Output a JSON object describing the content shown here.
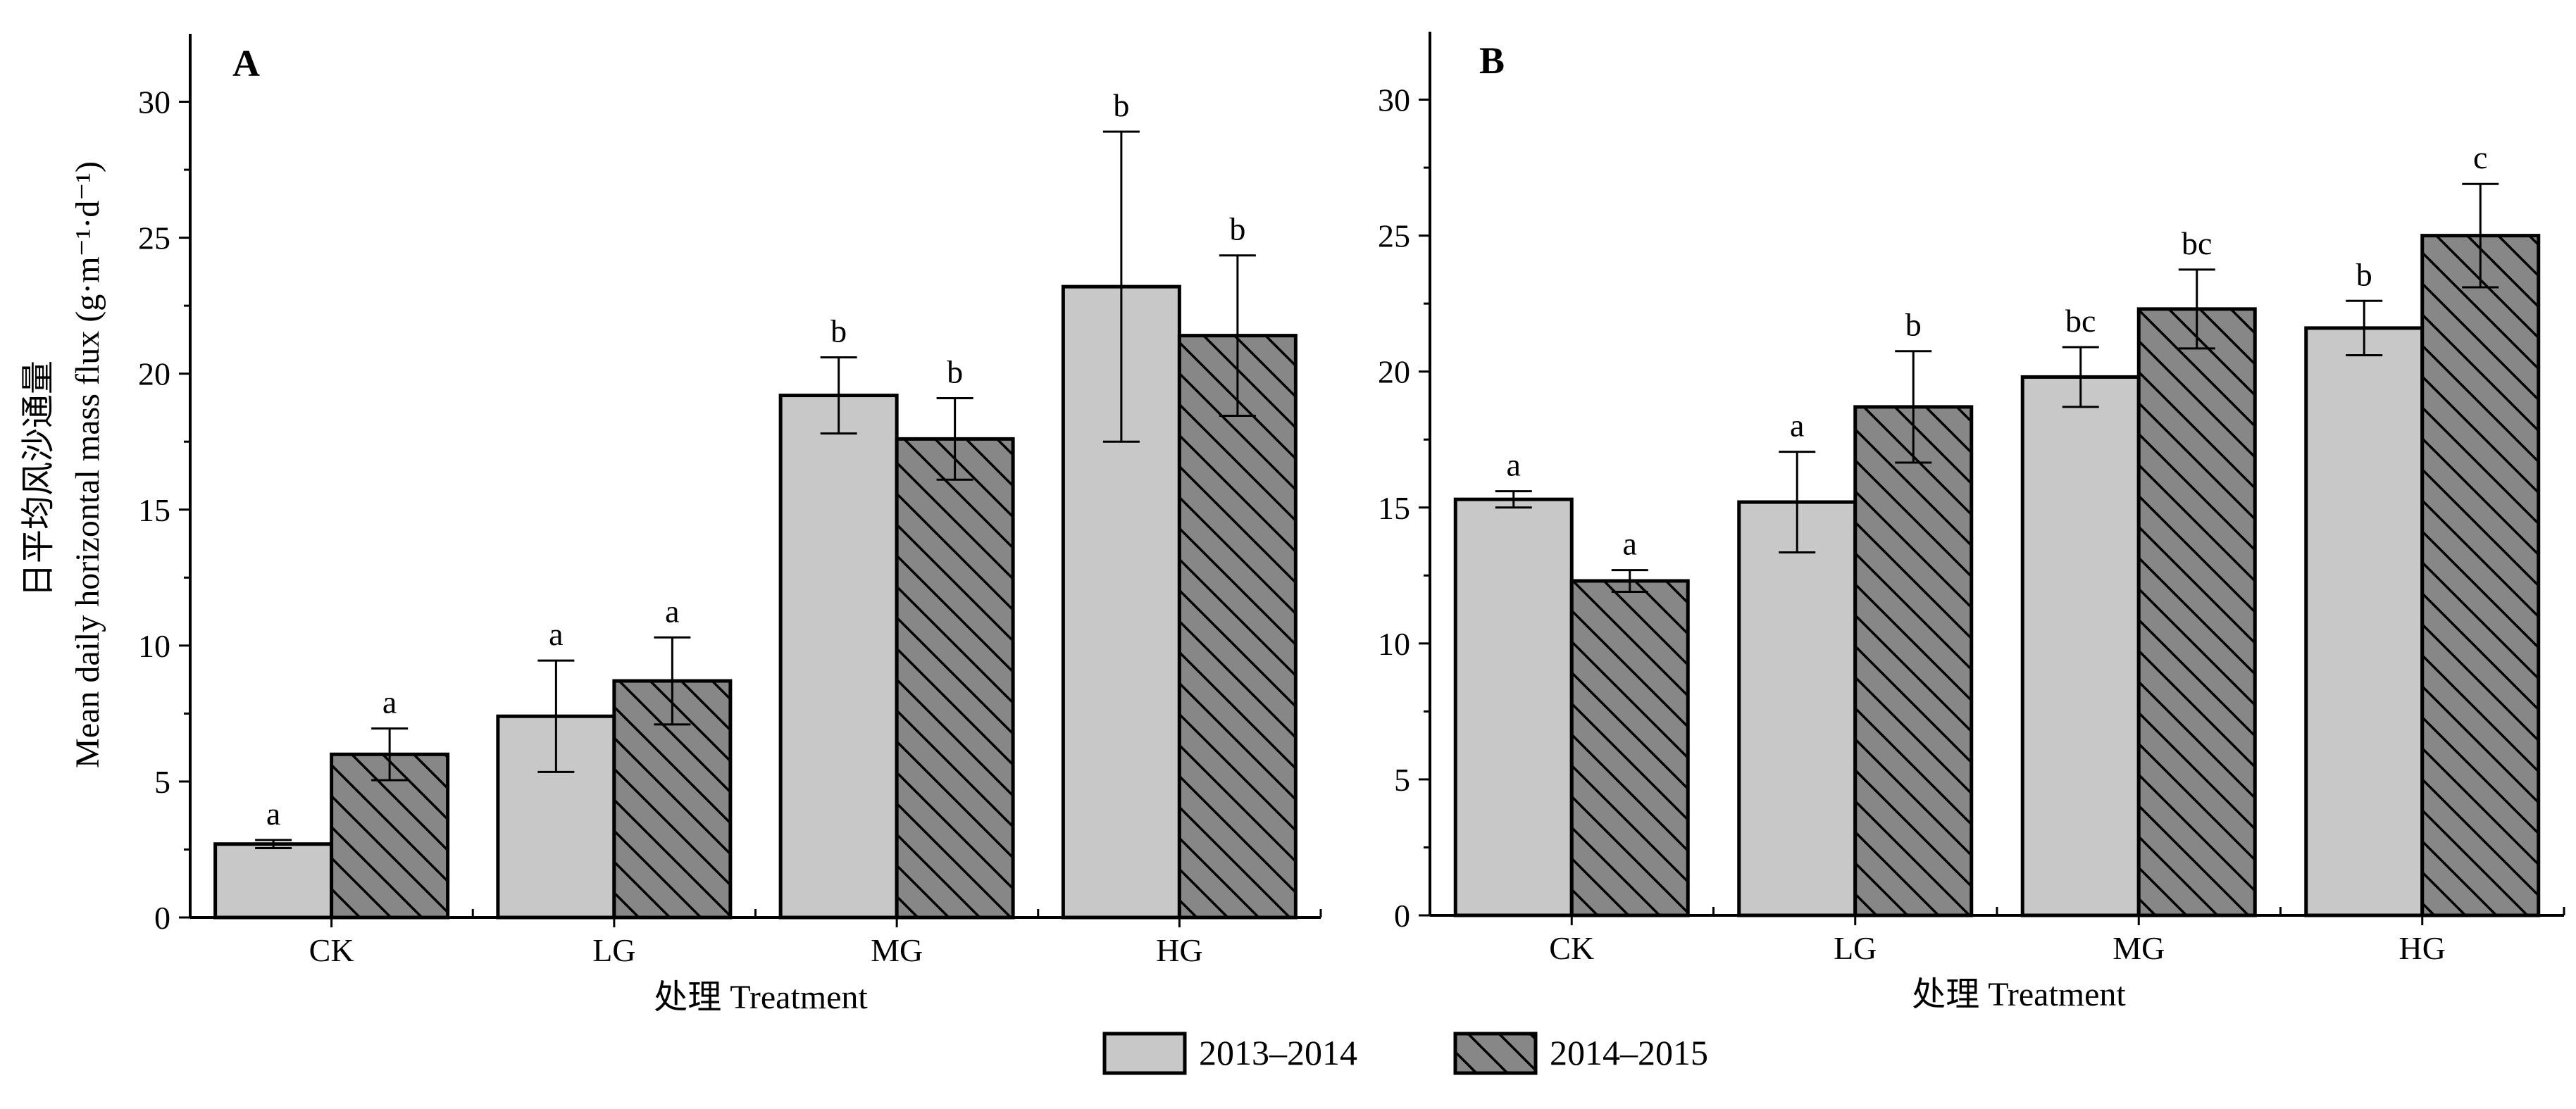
{
  "chart_data": [
    {
      "type": "bar",
      "panel_label": "A",
      "categories": [
        "CK",
        "LG",
        "MG",
        "HG"
      ],
      "ylim": [
        0,
        32.5
      ],
      "yticks": [
        0,
        5,
        10,
        15,
        20,
        25,
        30
      ],
      "grid": false,
      "ylabel_cn": "日平均风沙通量",
      "ylabel": "Mean daily horizontal mass flux (g·m⁻¹·d⁻¹)",
      "xlabel": "处理  Treatment",
      "series": [
        {
          "name": "2013–2014",
          "values": [
            2.7,
            7.4,
            19.2,
            23.2
          ],
          "errors": [
            0.15,
            2.05,
            1.4,
            5.7
          ],
          "sig": [
            "a",
            "a",
            "b",
            "b"
          ]
        },
        {
          "name": "2014–2015",
          "values": [
            6.0,
            8.7,
            17.6,
            21.4
          ],
          "errors": [
            0.95,
            1.6,
            1.5,
            2.95
          ],
          "sig": [
            "a",
            "a",
            "b",
            "b"
          ]
        }
      ]
    },
    {
      "type": "bar",
      "panel_label": "B",
      "categories": [
        "CK",
        "LG",
        "MG",
        "HG"
      ],
      "ylim": [
        0,
        32.5
      ],
      "yticks": [
        0,
        5,
        10,
        15,
        20,
        25,
        30
      ],
      "grid": false,
      "xlabel": "处理  Treatment",
      "series": [
        {
          "name": "2013–2014",
          "values": [
            15.3,
            15.2,
            19.8,
            21.6
          ],
          "errors": [
            0.3,
            1.85,
            1.1,
            1.0
          ],
          "sig": [
            "a",
            "a",
            "bc",
            "b"
          ]
        },
        {
          "name": "2014–2015",
          "values": [
            12.3,
            18.7,
            22.3,
            25.0
          ],
          "errors": [
            0.4,
            2.05,
            1.45,
            1.9
          ],
          "sig": [
            "a",
            "b",
            "bc",
            "c"
          ]
        }
      ]
    }
  ],
  "legend": {
    "placement": "bottom-center",
    "items": [
      {
        "label": "2013–2014",
        "fill": "#c8c8c8",
        "pattern": "none"
      },
      {
        "label": "2014–2015",
        "fill": "#878787",
        "pattern": "diagonal-hatch"
      }
    ]
  },
  "colors": {
    "series_1": "#c8c8c8",
    "series_2": "#878787",
    "axis": "#000000"
  }
}
